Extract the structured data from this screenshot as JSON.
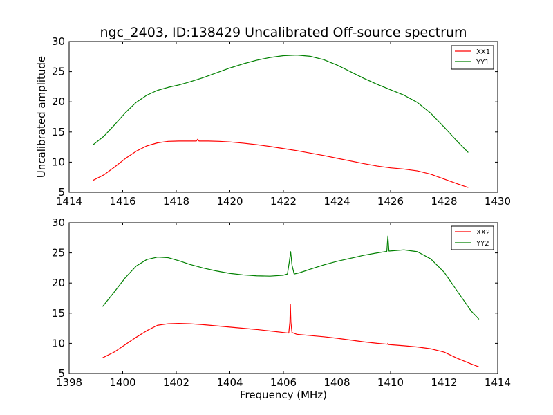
{
  "figure_title": "ngc_2403, ID:138429 Uncalibrated Off-source spectrum",
  "colors": {
    "xx": "#ff0000",
    "yy": "#008000"
  },
  "chart_data": [
    {
      "type": "line",
      "title": "ngc_2403, ID:138429 Uncalibrated Off-source spectrum",
      "xlabel": "",
      "ylabel": "Uncalibrated amplitude",
      "xlim": [
        1414,
        1430
      ],
      "ylim": [
        5,
        30
      ],
      "xticks": [
        "1414",
        "1416",
        "1418",
        "1420",
        "1422",
        "1424",
        "1426",
        "1428",
        "1430"
      ],
      "yticks": [
        "5",
        "10",
        "15",
        "20",
        "25",
        "30"
      ],
      "legend": "top-right",
      "grid": false,
      "series": [
        {
          "name": "XX1",
          "color": "#ff0000",
          "points": [
            [
              1414.9,
              7.0
            ],
            [
              1415.3,
              7.9
            ],
            [
              1415.7,
              9.2
            ],
            [
              1416.1,
              10.6
            ],
            [
              1416.5,
              11.8
            ],
            [
              1416.9,
              12.7
            ],
            [
              1417.3,
              13.2
            ],
            [
              1417.7,
              13.45
            ],
            [
              1418.1,
              13.5
            ],
            [
              1418.5,
              13.5
            ],
            [
              1418.75,
              13.5
            ],
            [
              1418.8,
              13.8
            ],
            [
              1418.85,
              13.5
            ],
            [
              1419.2,
              13.5
            ],
            [
              1419.6,
              13.45
            ],
            [
              1420.0,
              13.35
            ],
            [
              1420.5,
              13.15
            ],
            [
              1421.0,
              12.9
            ],
            [
              1421.5,
              12.6
            ],
            [
              1422.0,
              12.25
            ],
            [
              1422.5,
              11.9
            ],
            [
              1423.0,
              11.5
            ],
            [
              1423.5,
              11.1
            ],
            [
              1424.0,
              10.65
            ],
            [
              1424.5,
              10.2
            ],
            [
              1425.0,
              9.75
            ],
            [
              1425.5,
              9.35
            ],
            [
              1426.0,
              9.05
            ],
            [
              1426.5,
              8.85
            ],
            [
              1427.0,
              8.55
            ],
            [
              1427.5,
              8.0
            ],
            [
              1428.0,
              7.2
            ],
            [
              1428.5,
              6.4
            ],
            [
              1428.9,
              5.8
            ]
          ]
        },
        {
          "name": "YY1",
          "color": "#008000",
          "points": [
            [
              1414.9,
              12.9
            ],
            [
              1415.3,
              14.3
            ],
            [
              1415.7,
              16.2
            ],
            [
              1416.1,
              18.2
            ],
            [
              1416.5,
              19.9
            ],
            [
              1416.9,
              21.1
            ],
            [
              1417.3,
              21.9
            ],
            [
              1417.7,
              22.4
            ],
            [
              1418.1,
              22.8
            ],
            [
              1418.5,
              23.3
            ],
            [
              1419.0,
              24.0
            ],
            [
              1419.5,
              24.8
            ],
            [
              1420.0,
              25.6
            ],
            [
              1420.5,
              26.3
            ],
            [
              1421.0,
              26.9
            ],
            [
              1421.5,
              27.35
            ],
            [
              1422.0,
              27.65
            ],
            [
              1422.5,
              27.75
            ],
            [
              1423.0,
              27.55
            ],
            [
              1423.5,
              27.0
            ],
            [
              1424.0,
              26.1
            ],
            [
              1424.5,
              25.0
            ],
            [
              1425.0,
              23.9
            ],
            [
              1425.5,
              22.9
            ],
            [
              1426.0,
              22.0
            ],
            [
              1426.5,
              21.1
            ],
            [
              1427.0,
              19.9
            ],
            [
              1427.5,
              18.1
            ],
            [
              1428.0,
              15.8
            ],
            [
              1428.5,
              13.4
            ],
            [
              1428.9,
              11.6
            ]
          ]
        }
      ]
    },
    {
      "type": "line",
      "title": "",
      "xlabel": "Frequency (MHz)",
      "ylabel": "",
      "xlim": [
        1398,
        1414
      ],
      "ylim": [
        5,
        30
      ],
      "xticks": [
        "1398",
        "1400",
        "1402",
        "1404",
        "1406",
        "1408",
        "1410",
        "1412",
        "1414"
      ],
      "yticks": [
        "5",
        "10",
        "15",
        "20",
        "25",
        "30"
      ],
      "legend": "top-right",
      "grid": false,
      "series": [
        {
          "name": "XX2",
          "color": "#ff0000",
          "points": [
            [
              1399.25,
              7.6
            ],
            [
              1399.7,
              8.6
            ],
            [
              1400.1,
              9.8
            ],
            [
              1400.5,
              11.0
            ],
            [
              1400.9,
              12.1
            ],
            [
              1401.3,
              13.0
            ],
            [
              1401.7,
              13.25
            ],
            [
              1402.1,
              13.3
            ],
            [
              1402.5,
              13.25
            ],
            [
              1403.0,
              13.1
            ],
            [
              1403.5,
              12.9
            ],
            [
              1404.0,
              12.7
            ],
            [
              1404.5,
              12.5
            ],
            [
              1405.0,
              12.3
            ],
            [
              1405.5,
              12.05
            ],
            [
              1406.0,
              11.8
            ],
            [
              1406.2,
              11.7
            ],
            [
              1406.24,
              13.5
            ],
            [
              1406.26,
              16.5
            ],
            [
              1406.28,
              13.5
            ],
            [
              1406.32,
              11.8
            ],
            [
              1406.5,
              11.5
            ],
            [
              1407.0,
              11.3
            ],
            [
              1407.5,
              11.1
            ],
            [
              1408.0,
              10.85
            ],
            [
              1408.5,
              10.55
            ],
            [
              1409.0,
              10.25
            ],
            [
              1409.5,
              10.0
            ],
            [
              1409.88,
              9.85
            ],
            [
              1409.9,
              10.0
            ],
            [
              1409.92,
              9.8
            ],
            [
              1410.5,
              9.6
            ],
            [
              1411.0,
              9.4
            ],
            [
              1411.5,
              9.1
            ],
            [
              1412.0,
              8.55
            ],
            [
              1412.5,
              7.5
            ],
            [
              1413.0,
              6.6
            ],
            [
              1413.3,
              6.1
            ]
          ]
        },
        {
          "name": "YY2",
          "color": "#008000",
          "points": [
            [
              1399.25,
              16.1
            ],
            [
              1399.7,
              18.6
            ],
            [
              1400.1,
              20.9
            ],
            [
              1400.5,
              22.8
            ],
            [
              1400.9,
              23.9
            ],
            [
              1401.3,
              24.3
            ],
            [
              1401.7,
              24.2
            ],
            [
              1402.1,
              23.7
            ],
            [
              1402.5,
              23.1
            ],
            [
              1403.0,
              22.5
            ],
            [
              1403.5,
              22.0
            ],
            [
              1404.0,
              21.6
            ],
            [
              1404.5,
              21.35
            ],
            [
              1405.0,
              21.2
            ],
            [
              1405.5,
              21.15
            ],
            [
              1406.0,
              21.3
            ],
            [
              1406.15,
              21.5
            ],
            [
              1406.22,
              23.5
            ],
            [
              1406.27,
              25.2
            ],
            [
              1406.32,
              23.0
            ],
            [
              1406.4,
              21.5
            ],
            [
              1406.6,
              21.7
            ],
            [
              1407.0,
              22.3
            ],
            [
              1407.5,
              23.0
            ],
            [
              1408.0,
              23.6
            ],
            [
              1408.5,
              24.1
            ],
            [
              1409.0,
              24.6
            ],
            [
              1409.5,
              25.0
            ],
            [
              1409.86,
              25.25
            ],
            [
              1409.9,
              27.8
            ],
            [
              1409.94,
              25.3
            ],
            [
              1410.5,
              25.5
            ],
            [
              1411.0,
              25.2
            ],
            [
              1411.5,
              24.0
            ],
            [
              1412.0,
              21.8
            ],
            [
              1412.5,
              18.6
            ],
            [
              1413.0,
              15.4
            ],
            [
              1413.3,
              14.0
            ]
          ]
        }
      ]
    }
  ]
}
